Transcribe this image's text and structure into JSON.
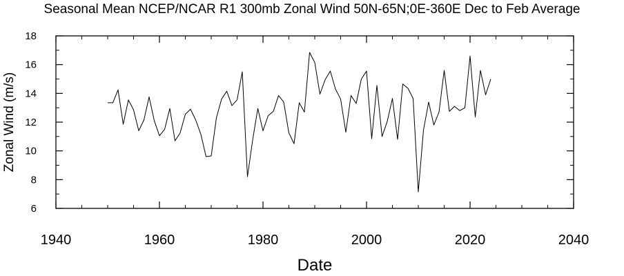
{
  "chart_data": {
    "type": "line",
    "title": "Seasonal Mean NCEP/NCAR R1 300mb Zonal Wind 50N-65N;0E-360E Dec to Feb Average",
    "xlabel": "Date",
    "ylabel": "Zonal Wind (m/s)",
    "xlim": [
      1940,
      2040
    ],
    "ylim": [
      6,
      18
    ],
    "x_major_ticks": [
      1940,
      1960,
      1980,
      2000,
      2020,
      2040
    ],
    "x_minor_step": 5,
    "y_major_ticks": [
      6,
      8,
      10,
      12,
      14,
      16,
      18
    ],
    "y_minor_step": 1,
    "x_tick_labels": [
      "1940",
      "1960",
      "1980",
      "2000",
      "2020",
      "2040"
    ],
    "y_tick_labels": [
      "6",
      "8",
      "10",
      "12",
      "14",
      "16",
      "18"
    ],
    "grid": false,
    "line_color": "#000000",
    "series": [
      {
        "name": "Zonal Wind",
        "x": [
          1950,
          1951,
          1952,
          1953,
          1954,
          1955,
          1956,
          1957,
          1958,
          1959,
          1960,
          1961,
          1962,
          1963,
          1964,
          1965,
          1966,
          1967,
          1968,
          1969,
          1970,
          1971,
          1972,
          1973,
          1974,
          1975,
          1976,
          1977,
          1978,
          1979,
          1980,
          1981,
          1982,
          1983,
          1984,
          1985,
          1986,
          1987,
          1988,
          1989,
          1990,
          1991,
          1992,
          1993,
          1994,
          1995,
          1996,
          1997,
          1998,
          1999,
          2000,
          2001,
          2002,
          2003,
          2004,
          2005,
          2006,
          2007,
          2008,
          2009,
          2010,
          2011,
          2012,
          2013,
          2014,
          2015,
          2016,
          2017,
          2018,
          2019,
          2020,
          2021,
          2022,
          2023,
          2024
        ],
        "values": [
          13.35,
          13.35,
          14.25,
          11.85,
          13.55,
          12.85,
          11.4,
          12.15,
          13.75,
          12.1,
          11.05,
          11.5,
          12.95,
          10.7,
          11.25,
          12.55,
          12.9,
          12.15,
          11.15,
          9.6,
          9.65,
          12.3,
          13.6,
          14.15,
          13.15,
          13.55,
          15.5,
          8.2,
          10.75,
          12.95,
          11.4,
          12.45,
          12.75,
          13.85,
          13.4,
          11.25,
          10.5,
          13.35,
          12.7,
          16.85,
          16.15,
          13.95,
          14.95,
          15.55,
          14.3,
          13.6,
          11.3,
          13.85,
          13.3,
          15.0,
          15.55,
          10.85,
          14.55,
          11.0,
          12.05,
          13.65,
          10.8,
          14.65,
          14.35,
          13.65,
          7.15,
          11.45,
          13.4,
          11.8,
          12.7,
          15.6,
          12.75,
          13.1,
          12.8,
          13.0,
          16.6,
          12.35,
          15.6,
          13.9,
          15.0
        ]
      }
    ]
  }
}
